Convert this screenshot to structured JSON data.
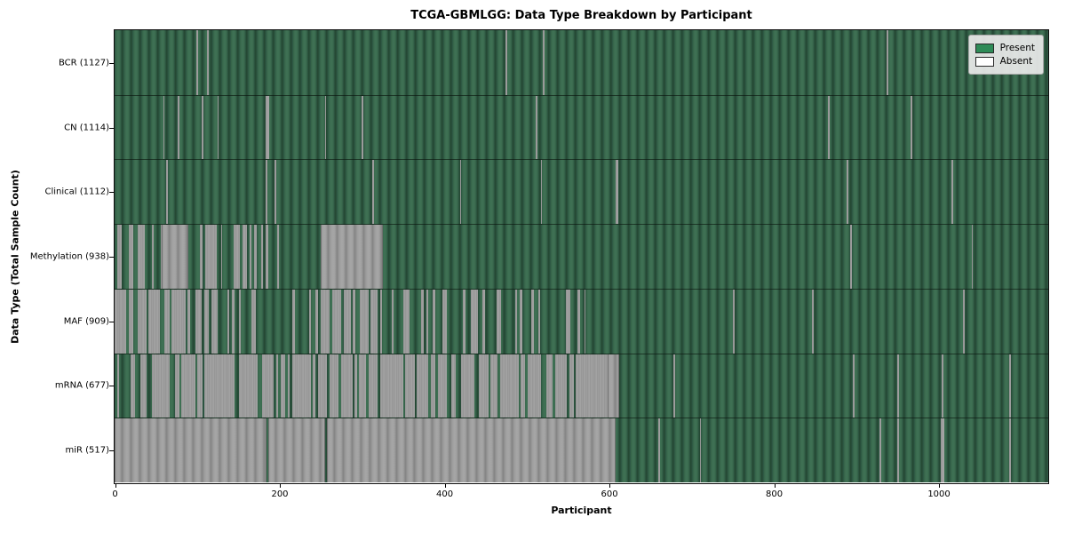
{
  "figure": {
    "title": "TCGA-GBMLGG: Data Type Breakdown by Participant",
    "xlabel": "Participant",
    "ylabel": "Data Type (Total Sample Count)"
  },
  "legend": {
    "items": [
      {
        "label": "Present",
        "color": "#2e8b57"
      },
      {
        "label": "Absent",
        "color": "#ffffff"
      }
    ]
  },
  "chart_data": {
    "type": "heatmap",
    "title": "TCGA-GBMLGG: Data Type Breakdown by Participant",
    "xlabel": "Participant",
    "ylabel": "Data Type (Total Sample Count)",
    "x_ticks": [
      0,
      200,
      400,
      600,
      800,
      1000
    ],
    "x_range": [
      0,
      1132
    ],
    "n_participants": 1127,
    "grid": false,
    "legend_position": "upper right",
    "colors": {
      "present_base": "#2e8b57",
      "present_stripe_light": "#407155",
      "present_stripe_dark": "#234630",
      "absent_base": "#ffffff",
      "absent_stripe_light": "#a6a6a6",
      "absent_stripe_dark": "#838383"
    },
    "rows": [
      {
        "data_type": "BCR",
        "label": "BCR (1127)",
        "present_count": 1127,
        "absent_segments": [
          [
            99,
            101
          ],
          [
            112,
            114
          ],
          [
            474,
            476
          ],
          [
            520,
            522
          ],
          [
            937,
            939
          ]
        ]
      },
      {
        "data_type": "CN",
        "label": "CN (1114)",
        "present_count": 1114,
        "absent_segments": [
          [
            59,
            60.5
          ],
          [
            77,
            78.5
          ],
          [
            106,
            108
          ],
          [
            125,
            126.5
          ],
          [
            183,
            188
          ],
          [
            255,
            257
          ],
          [
            300,
            302
          ],
          [
            511,
            513
          ],
          [
            866,
            868
          ],
          [
            966,
            968
          ]
        ]
      },
      {
        "data_type": "Clinical",
        "label": "Clinical (1112)",
        "present_count": 1112,
        "absent_segments": [
          [
            63,
            65
          ],
          [
            183,
            185.5
          ],
          [
            194,
            196
          ],
          [
            313,
            315
          ],
          [
            419,
            421
          ],
          [
            517,
            519
          ],
          [
            608,
            611
          ],
          [
            888,
            890
          ],
          [
            1016,
            1018
          ]
        ]
      },
      {
        "data_type": "Methylation",
        "label": "Methylation (938)",
        "present_count": 938,
        "absent_segments": [
          [
            0,
            57,
            0.5
          ],
          [
            57,
            90
          ],
          [
            104,
            130,
            0.72
          ],
          [
            130,
            199,
            0.55
          ],
          [
            250,
            326
          ],
          [
            893,
            895
          ],
          [
            1040,
            1041.5
          ]
        ]
      },
      {
        "data_type": "MAF",
        "label": "MAF (909)",
        "present_count": 909,
        "absent_segments": [
          [
            0,
            30,
            0.82
          ],
          [
            30,
            92,
            0.75
          ],
          [
            92,
            160,
            0.42
          ],
          [
            160,
            250,
            0.18
          ],
          [
            250,
            308,
            0.65
          ],
          [
            308,
            430,
            0.28
          ],
          [
            430,
            570,
            0.2
          ],
          [
            570,
            700,
            0.03
          ],
          [
            750,
            752
          ],
          [
            846,
            848
          ],
          [
            1030,
            1032
          ]
        ]
      },
      {
        "data_type": "mRNA",
        "label": "mRNA (677)",
        "present_count": 677,
        "absent_segments": [
          [
            0,
            598,
            0.72
          ],
          [
            598,
            612
          ],
          [
            678,
            680
          ],
          [
            896,
            898
          ],
          [
            950,
            952
          ],
          [
            1004,
            1006
          ],
          [
            1086,
            1088
          ]
        ]
      },
      {
        "data_type": "miR",
        "label": "miR (517)",
        "present_count": 517,
        "absent_segments": [
          [
            0,
            184
          ],
          [
            186,
            256
          ],
          [
            258,
            608
          ],
          [
            660,
            662
          ],
          [
            710,
            712
          ],
          [
            928,
            930
          ],
          [
            950,
            952
          ],
          [
            1003,
            1007
          ],
          [
            1086,
            1088
          ]
        ]
      }
    ]
  }
}
